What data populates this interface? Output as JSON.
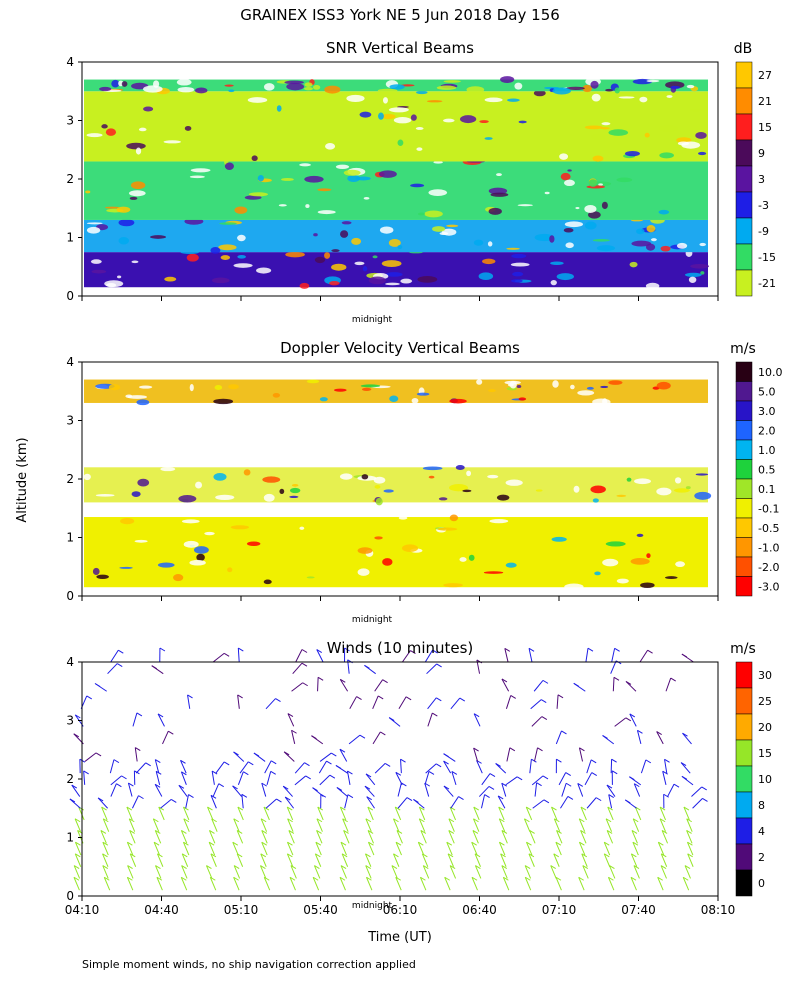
{
  "figure": {
    "title": "GRAINEX ISS3 York NE   5 Jun 2018 Day 156",
    "y_axis_label": "Altitude (km)",
    "x_axis_label": "Time (UT)",
    "midnight_label": "midnight",
    "footnote": "Simple moment winds, no ship navigation correction applied"
  },
  "chart_data": [
    {
      "type": "heatmap",
      "title": "SNR Vertical Beams",
      "xlabel": "",
      "ylabel": "Altitude (km)",
      "ylim": [
        0,
        4
      ],
      "y_ticks": [
        "0",
        "1",
        "2",
        "3",
        "4"
      ],
      "x_ticks": [
        "04:10",
        "04:40",
        "05:10",
        "05:40",
        "06:10",
        "06:40",
        "07:10",
        "07:40",
        "08:10"
      ],
      "x_tick_labels_shown": false,
      "colorbar": {
        "unit": "dB",
        "labels": [
          "27",
          "21",
          "15",
          "9",
          "3",
          "-3",
          "-9",
          "-15",
          "-21"
        ],
        "colors": [
          "#ffc800",
          "#ff8c00",
          "#ff1e1e",
          "#4b0a5a",
          "#5a14a0",
          "#1e1ee6",
          "#00aaf0",
          "#32dc64",
          "#c8f020"
        ]
      },
      "layers": [
        {
          "alt_range": [
            0.15,
            0.75
          ],
          "level": "3 to 9 dB",
          "color": "#3a10b0"
        },
        {
          "alt_range": [
            0.75,
            1.3
          ],
          "level": "-9 to -3 dB",
          "color": "#1ea8f0"
        },
        {
          "alt_range": [
            1.3,
            2.3
          ],
          "level": "-15 to -9 dB",
          "color": "#3cdc7a"
        },
        {
          "alt_range": [
            2.3,
            3.5
          ],
          "level": "-21 to -15 dB",
          "color": "#c8f020"
        },
        {
          "alt_range": [
            3.5,
            3.7
          ],
          "level": "-15 to -9 dB",
          "color": "#3cdc7a"
        }
      ]
    },
    {
      "type": "heatmap",
      "title": "Doppler Velocity Vertical Beams",
      "xlabel": "",
      "ylabel": "Altitude (km)",
      "ylim": [
        0,
        4
      ],
      "y_ticks": [
        "0",
        "1",
        "2",
        "3",
        "4"
      ],
      "x_ticks": [
        "04:10",
        "04:40",
        "05:10",
        "05:40",
        "06:10",
        "06:40",
        "07:10",
        "07:40",
        "08:10"
      ],
      "x_tick_labels_shown": false,
      "colorbar": {
        "unit": "m/s",
        "labels": [
          "10.0",
          "5.0",
          "3.0",
          "2.0",
          "1.0",
          "0.5",
          "0.1",
          "-0.1",
          "-0.5",
          "-1.0",
          "-2.0",
          "-3.0"
        ],
        "colors": [
          "#280014",
          "#501890",
          "#2814c8",
          "#1e64ff",
          "#00b4f0",
          "#1ed23c",
          "#a0e628",
          "#f0f000",
          "#ffc800",
          "#ff9600",
          "#ff5000",
          "#ff0000"
        ]
      },
      "layers": [
        {
          "alt_range": [
            0.15,
            1.35
          ],
          "level": "-0.1 to -0.5 m/s",
          "color": "#f0f000"
        },
        {
          "alt_range": [
            1.6,
            2.2
          ],
          "level": "-0.1 to 0.1 m/s",
          "color": "#e6f050"
        },
        {
          "alt_range": [
            3.3,
            3.7
          ],
          "level": "-0.5 to -1.0 m/s",
          "color": "#f0c020"
        }
      ]
    },
    {
      "type": "scatter",
      "title": "Winds (10 minutes)",
      "xlabel": "Time (UT)",
      "ylabel": "Altitude (km)",
      "ylim": [
        0,
        4
      ],
      "y_ticks": [
        "0",
        "1",
        "2",
        "3",
        "4"
      ],
      "x_ticks": [
        "04:10",
        "04:40",
        "05:10",
        "05:40",
        "06:10",
        "06:40",
        "07:10",
        "07:40",
        "08:10"
      ],
      "x_tick_labels_shown": true,
      "colorbar": {
        "unit": "m/s",
        "labels": [
          "30",
          "25",
          "20",
          "15",
          "10",
          "8",
          "4",
          "2",
          "0"
        ],
        "colors": [
          "#ff0000",
          "#ff6400",
          "#ffaa00",
          "#96e628",
          "#32dc64",
          "#00aaf0",
          "#1e1ee6",
          "#500a78",
          "#000000"
        ]
      },
      "wind_columns_x": [
        "04:10",
        "04:20",
        "04:30",
        "04:40",
        "04:50",
        "05:00",
        "05:10",
        "05:20",
        "05:30",
        "05:40",
        "05:50",
        "06:00",
        "06:10",
        "06:20",
        "06:30",
        "06:40",
        "06:50",
        "07:00",
        "07:10",
        "07:20",
        "07:30",
        "07:40",
        "07:50",
        "08:00"
      ],
      "wind_rows_alt_km": [
        0.1,
        0.3,
        0.5,
        0.7,
        0.9,
        1.1,
        1.3,
        1.5,
        1.7,
        1.9,
        2.1,
        2.3,
        2.6,
        2.9,
        3.2,
        3.5,
        3.8,
        4.0
      ],
      "speed_by_altitude": [
        {
          "alt_range": [
            0.0,
            1.5
          ],
          "speed_ms": 15
        },
        {
          "alt_range": [
            1.5,
            2.2
          ],
          "speed_ms": 4
        },
        {
          "alt_range": [
            2.2,
            4.0
          ],
          "speed_ms": 2
        }
      ]
    }
  ]
}
